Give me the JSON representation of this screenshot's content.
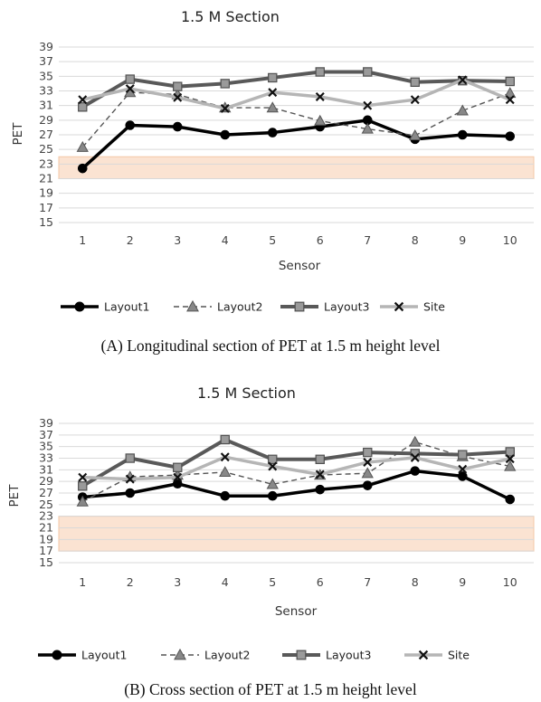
{
  "chart_data": [
    {
      "type": "line",
      "title": "1.5 M   Section",
      "caption": "(A) Longitudinal section of PET at 1.5 m height level",
      "xlabel": "Sensor",
      "ylabel": "PET",
      "categories": [
        "1",
        "2",
        "3",
        "4",
        "5",
        "6",
        "7",
        "8",
        "9",
        "10"
      ],
      "yticks": [
        "15",
        "17",
        "19",
        "21",
        "23",
        "25",
        "27",
        "29",
        "31",
        "33",
        "35",
        "37",
        "39"
      ],
      "ylim": [
        15,
        39
      ],
      "comfort_band": [
        21,
        24
      ],
      "grid": true,
      "legend_position": "bottom",
      "series": [
        {
          "name": "Layout1",
          "style": "layout1",
          "values": [
            22.4,
            28.3,
            28.1,
            27.0,
            27.3,
            28.1,
            29.0,
            26.4,
            27.0,
            26.8
          ]
        },
        {
          "name": "Layout2",
          "style": "layout2",
          "values": [
            25.3,
            32.8,
            32.5,
            30.7,
            30.7,
            28.9,
            27.8,
            26.9,
            30.3,
            32.7
          ]
        },
        {
          "name": "Layout3",
          "style": "layout3",
          "values": [
            30.8,
            34.6,
            33.6,
            34.0,
            34.8,
            35.6,
            35.6,
            34.2,
            34.4,
            34.3
          ]
        },
        {
          "name": "Site",
          "style": "site",
          "values": [
            31.8,
            33.3,
            32.1,
            30.6,
            32.8,
            32.2,
            31.0,
            31.8,
            34.5,
            31.8
          ]
        }
      ]
    },
    {
      "type": "line",
      "title": "1.5 M   Section",
      "caption": "(B) Cross section of PET at 1.5 m height level",
      "xlabel": "Sensor",
      "ylabel": "PET",
      "categories": [
        "1",
        "2",
        "3",
        "4",
        "5",
        "6",
        "7",
        "8",
        "9",
        "10"
      ],
      "yticks": [
        "15",
        "17",
        "19",
        "21",
        "23",
        "25",
        "27",
        "29",
        "31",
        "33",
        "35",
        "37",
        "39"
      ],
      "ylim": [
        15,
        39
      ],
      "comfort_band": [
        17,
        23
      ],
      "grid": true,
      "legend_position": "bottom",
      "series": [
        {
          "name": "Layout1",
          "style": "layout1",
          "values": [
            26.3,
            27.0,
            28.6,
            26.5,
            26.5,
            27.6,
            28.3,
            30.8,
            29.9,
            25.9
          ]
        },
        {
          "name": "Layout2",
          "style": "layout2",
          "values": [
            25.5,
            29.8,
            30.1,
            30.6,
            28.5,
            30.1,
            30.4,
            35.8,
            33.3,
            31.6
          ]
        },
        {
          "name": "Layout3",
          "style": "layout3",
          "values": [
            28.2,
            33.0,
            31.4,
            36.2,
            32.8,
            32.8,
            34.0,
            33.8,
            33.6,
            34.1
          ]
        },
        {
          "name": "Site",
          "style": "site",
          "values": [
            29.7,
            29.4,
            29.7,
            33.2,
            31.6,
            30.2,
            32.3,
            33.1,
            31.1,
            32.9
          ]
        }
      ]
    }
  ]
}
